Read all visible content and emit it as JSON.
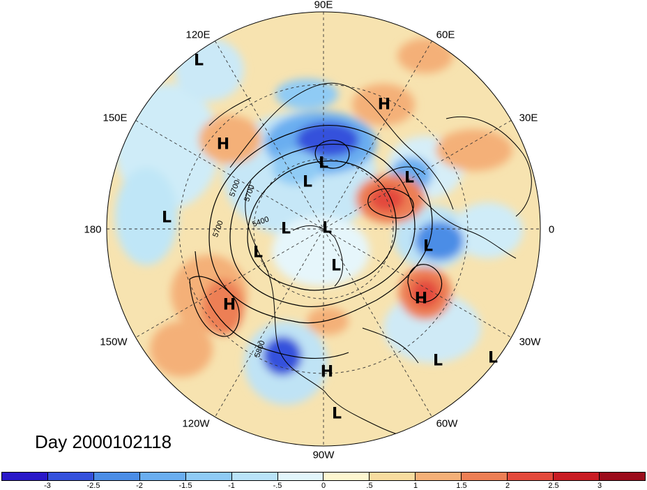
{
  "title": "Day 2000102118",
  "longitude_labels": [
    "90E",
    "60E",
    "30E",
    "0",
    "30W",
    "60W",
    "90W",
    "120W",
    "150W",
    "180",
    "150E",
    "120E"
  ],
  "pressure_centers": {
    "highs": [
      "H",
      "H",
      "H",
      "H",
      "H"
    ],
    "lows": [
      "L",
      "L",
      "L",
      "L",
      "L",
      "L",
      "L",
      "L",
      "L",
      "L",
      "L",
      "L",
      "L"
    ]
  },
  "contour_labels": [
    "5700",
    "5700",
    "5400",
    "5700",
    "5800"
  ],
  "colorbar": {
    "ticks": [
      "-3",
      "-2.5",
      "-2",
      "-1.5",
      "-1",
      "-.5",
      "0",
      ".5",
      "1",
      "1.5",
      "2",
      "2.5",
      "3"
    ],
    "colors": [
      "#2a19c9",
      "#3451dc",
      "#4b8de6",
      "#6aaef0",
      "#8fcbf5",
      "#b9e3f8",
      "#e2f5fb",
      "#fdf6d0",
      "#f7dc9f",
      "#f4b078",
      "#ed7f55",
      "#e34a3c",
      "#c91d24",
      "#9c0d1c"
    ]
  },
  "colors": {
    "land": "#000000",
    "grid": "#333333"
  }
}
